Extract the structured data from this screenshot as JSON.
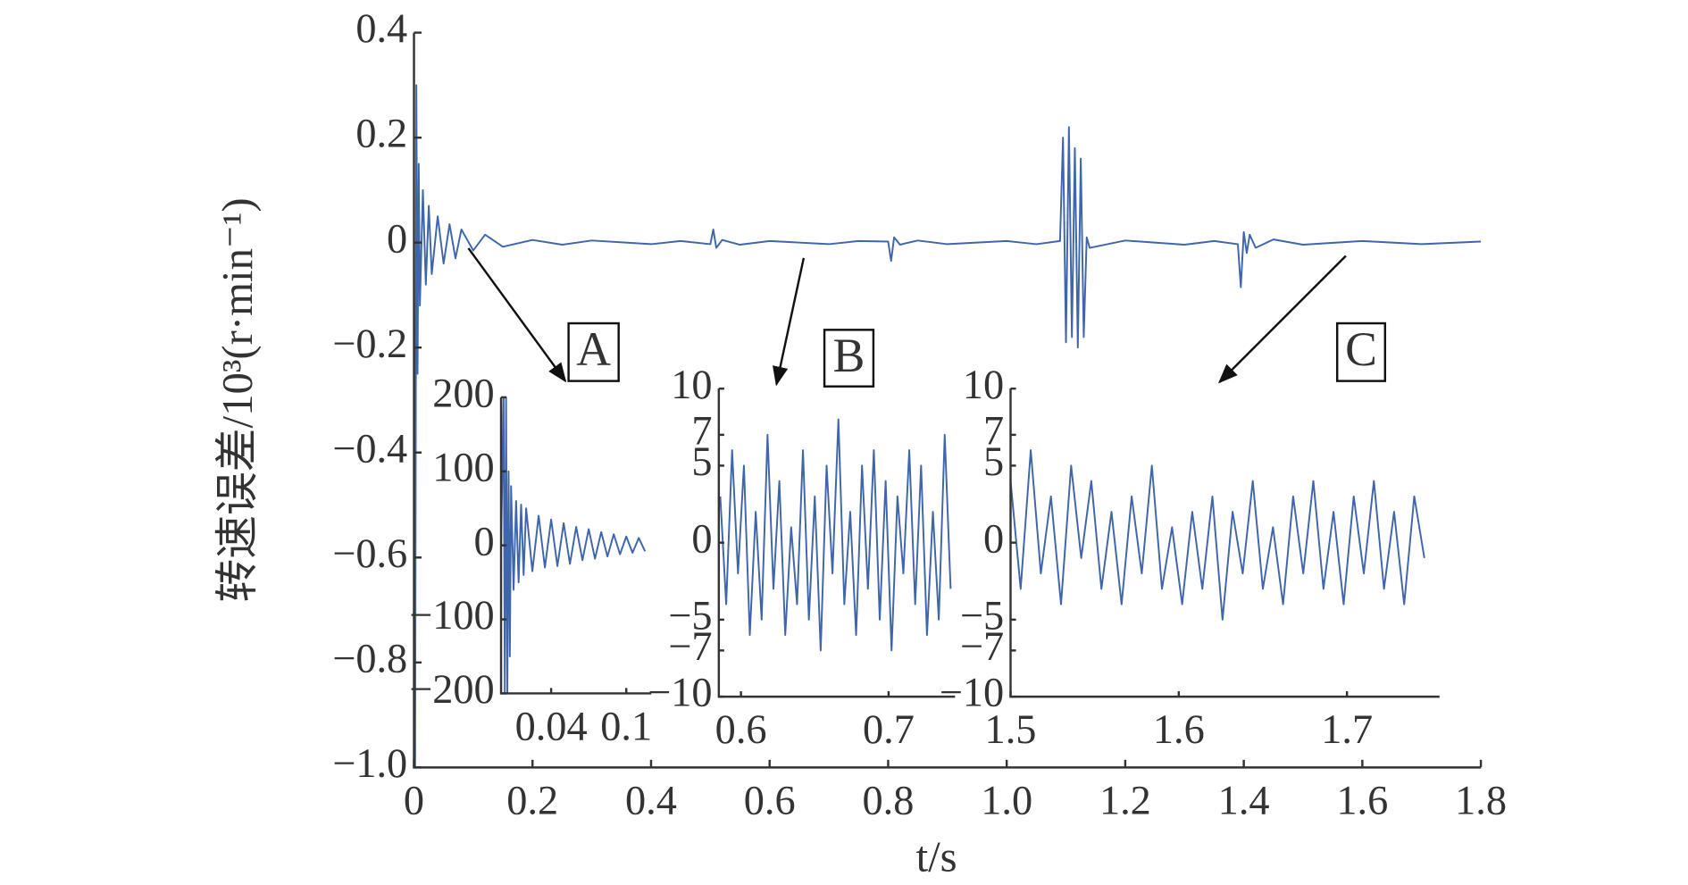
{
  "chart_data": [
    {
      "type": "line",
      "color": "#3f66ab",
      "ylabel": "转速误差/10³(r·min⁻¹)",
      "xlabel": "t/s",
      "xlim": [
        0,
        1.8
      ],
      "ylim": [
        -1.0,
        0.4
      ],
      "xticks": [
        0,
        0.2,
        0.4,
        0.6,
        0.8,
        {
          "value": 1.0,
          "label": "1.0"
        },
        1.2,
        1.4,
        1.6,
        1.8
      ],
      "yticks": [
        0.4,
        0.2,
        0,
        {
          "value": -0.2,
          "label": "−0.2"
        },
        {
          "value": -0.4,
          "label": "−0.4"
        },
        {
          "value": -0.6,
          "label": "−0.6"
        },
        {
          "value": -0.8,
          "label": "−0.8"
        },
        {
          "value": -1.0,
          "label": "−1.0"
        }
      ],
      "x": [
        0,
        0.002,
        0.004,
        0.006,
        0.008,
        0.01,
        0.015,
        0.02,
        0.025,
        0.03,
        0.04,
        0.05,
        0.06,
        0.07,
        0.08,
        0.1,
        0.12,
        0.15,
        0.2,
        0.25,
        0.3,
        0.4,
        0.45,
        0.5,
        0.505,
        0.51,
        0.52,
        0.55,
        0.6,
        0.7,
        0.75,
        0.8,
        0.805,
        0.81,
        0.82,
        0.85,
        0.9,
        1.0,
        1.05,
        1.09,
        1.095,
        1.1,
        1.105,
        1.11,
        1.115,
        1.12,
        1.125,
        1.13,
        1.135,
        1.14,
        1.2,
        1.3,
        1.35,
        1.39,
        1.395,
        1.4,
        1.405,
        1.41,
        1.42,
        1.45,
        1.5,
        1.6,
        1.7,
        1.8
      ],
      "values": [
        0,
        -1.0,
        0.3,
        -0.25,
        0.15,
        -0.12,
        0.1,
        -0.08,
        0.07,
        -0.06,
        0.05,
        -0.04,
        0.035,
        -0.03,
        0.025,
        -0.015,
        0.015,
        -0.008,
        0.005,
        -0.004,
        0.004,
        -0.003,
        0.003,
        -0.003,
        0.025,
        -0.01,
        0.005,
        -0.004,
        0.003,
        -0.003,
        0.003,
        0.002,
        -0.035,
        0.01,
        -0.004,
        0.004,
        -0.003,
        0.003,
        -0.003,
        0.003,
        0.2,
        -0.19,
        0.22,
        -0.18,
        0.18,
        -0.2,
        0.16,
        -0.18,
        0.01,
        -0.01,
        0.004,
        -0.004,
        0.003,
        -0.003,
        -0.085,
        0.02,
        -0.02,
        0.015,
        -0.01,
        0.006,
        -0.004,
        0.003,
        -0.003,
        0.002
      ]
    },
    {
      "type": "line",
      "color": "#3f66ab",
      "annotation": "A",
      "xlim": [
        0,
        0.12
      ],
      "ylim": [
        -200,
        200
      ],
      "xticks": [
        0.04,
        0.1
      ],
      "yticks": [
        200,
        100,
        0,
        {
          "value": -100,
          "label": "−100"
        },
        {
          "value": -200,
          "label": "−200"
        }
      ],
      "x": [
        0,
        0.002,
        0.003,
        0.004,
        0.005,
        0.006,
        0.007,
        0.008,
        0.01,
        0.012,
        0.014,
        0.016,
        0.018,
        0.02,
        0.025,
        0.03,
        0.035,
        0.04,
        0.045,
        0.05,
        0.055,
        0.06,
        0.065,
        0.07,
        0.075,
        0.08,
        0.085,
        0.09,
        0.095,
        0.1,
        0.105,
        0.11,
        0.115
      ],
      "values": [
        0,
        200,
        -200,
        200,
        -200,
        100,
        -150,
        80,
        -60,
        60,
        -50,
        55,
        -40,
        50,
        -35,
        40,
        -30,
        35,
        -28,
        30,
        -25,
        25,
        -20,
        22,
        -18,
        18,
        -15,
        15,
        -12,
        12,
        -10,
        10,
        -8
      ]
    },
    {
      "type": "line",
      "color": "#3f66ab",
      "annotation": "B",
      "xlim": [
        0.585,
        0.745
      ],
      "ylim": [
        -10,
        10
      ],
      "xticks": [
        0.6,
        0.7
      ],
      "yticks": [
        10,
        7,
        5,
        0,
        {
          "value": -5,
          "label": "−5"
        },
        {
          "value": -7,
          "label": "−7"
        },
        {
          "value": -10,
          "label": "−10"
        }
      ],
      "x": [
        0.586,
        0.59,
        0.594,
        0.598,
        0.602,
        0.606,
        0.61,
        0.614,
        0.618,
        0.622,
        0.626,
        0.63,
        0.634,
        0.638,
        0.642,
        0.646,
        0.65,
        0.654,
        0.658,
        0.662,
        0.666,
        0.67,
        0.674,
        0.678,
        0.682,
        0.686,
        0.69,
        0.694,
        0.698,
        0.702,
        0.706,
        0.71,
        0.714,
        0.718,
        0.722,
        0.726,
        0.73,
        0.734,
        0.738,
        0.742
      ],
      "values": [
        3,
        -4,
        6,
        -2,
        5,
        -6,
        2,
        -5,
        7,
        -3,
        4,
        -6,
        1,
        -4,
        6,
        -5,
        3,
        -7,
        5,
        -2,
        8,
        -4,
        2,
        -6,
        5,
        -3,
        6,
        -5,
        4,
        -7,
        3,
        -2,
        6,
        -4,
        5,
        -6,
        2,
        -5,
        7,
        -3
      ]
    },
    {
      "type": "line",
      "color": "#3f66ab",
      "annotation": "C",
      "xlim": [
        1.5,
        1.755
      ],
      "ylim": [
        -10,
        10
      ],
      "xticks": [
        1.5,
        1.6,
        1.7
      ],
      "yticks": [
        10,
        7,
        5,
        0,
        {
          "value": -5,
          "label": "−5"
        },
        {
          "value": -7,
          "label": "−7"
        },
        {
          "value": -10,
          "label": "−10"
        }
      ],
      "x": [
        1.5,
        1.506,
        1.512,
        1.518,
        1.524,
        1.53,
        1.536,
        1.542,
        1.548,
        1.554,
        1.56,
        1.566,
        1.572,
        1.578,
        1.584,
        1.59,
        1.596,
        1.602,
        1.608,
        1.614,
        1.62,
        1.626,
        1.632,
        1.638,
        1.644,
        1.65,
        1.656,
        1.662,
        1.668,
        1.674,
        1.68,
        1.686,
        1.692,
        1.698,
        1.704,
        1.71,
        1.716,
        1.722,
        1.728,
        1.734,
        1.74,
        1.746
      ],
      "values": [
        4,
        -3,
        6,
        -2,
        3,
        -4,
        5,
        -1,
        4,
        -3,
        2,
        -4,
        3,
        -2,
        5,
        -3,
        1,
        -4,
        2,
        -3,
        3,
        -5,
        2,
        -2,
        4,
        -3,
        1,
        -4,
        3,
        -2,
        4,
        -3,
        2,
        -4,
        3,
        -2,
        4,
        -3,
        2,
        -4,
        3,
        -1
      ]
    }
  ]
}
